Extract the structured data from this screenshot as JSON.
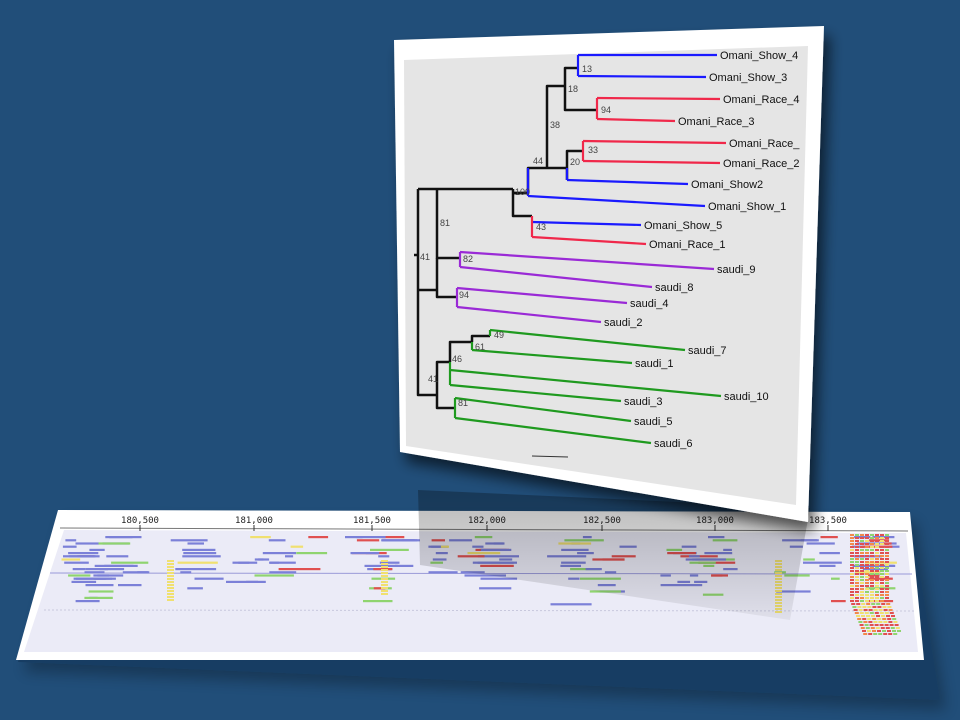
{
  "colors": {
    "background": "#214e79",
    "blue_clade": "#1a1aff",
    "red_clade": "#f0284a",
    "purple_clade": "#9a2ad6",
    "green_clade": "#1f9a1f",
    "backbone": "#111111",
    "read_blue": "#7b80d8",
    "read_red": "#e05050",
    "read_green": "#8fd46f",
    "read_yellow": "#f0e070"
  },
  "tree": {
    "leaves": [
      {
        "label": "Omani_Show_4",
        "group": "blue"
      },
      {
        "label": "Omani_Show_3",
        "group": "blue"
      },
      {
        "label": "Omani_Race_4",
        "group": "red"
      },
      {
        "label": "Omani_Race_3",
        "group": "red"
      },
      {
        "label": "Omani_Race_",
        "group": "red"
      },
      {
        "label": "Omani_Race_2",
        "group": "red"
      },
      {
        "label": "Omani_Show2",
        "group": "blue"
      },
      {
        "label": "Omani_Show_1",
        "group": "blue"
      },
      {
        "label": "Omani_Show_5",
        "group": "blue"
      },
      {
        "label": "Omani_Race_1",
        "group": "red"
      },
      {
        "label": "saudi_9",
        "group": "purple"
      },
      {
        "label": "saudi_8",
        "group": "purple"
      },
      {
        "label": "saudi_4",
        "group": "purple"
      },
      {
        "label": "saudi_2",
        "group": "purple"
      },
      {
        "label": "saudi_7",
        "group": "green"
      },
      {
        "label": "saudi_1",
        "group": "green"
      },
      {
        "label": "saudi_10",
        "group": "green"
      },
      {
        "label": "saudi_3",
        "group": "green"
      },
      {
        "label": "saudi_5",
        "group": "green"
      },
      {
        "label": "saudi_6",
        "group": "green"
      }
    ],
    "bootstrap_values": [
      "13",
      "18",
      "94",
      "38",
      "33",
      "20",
      "44",
      "100",
      "43",
      "81",
      "82",
      "41",
      "94",
      "49",
      "61",
      "46",
      "81",
      "41"
    ]
  },
  "genome_track": {
    "ticks": [
      "180,500",
      "181,000",
      "181,500",
      "182,000",
      "182,500",
      "183,000",
      "183,500"
    ]
  }
}
